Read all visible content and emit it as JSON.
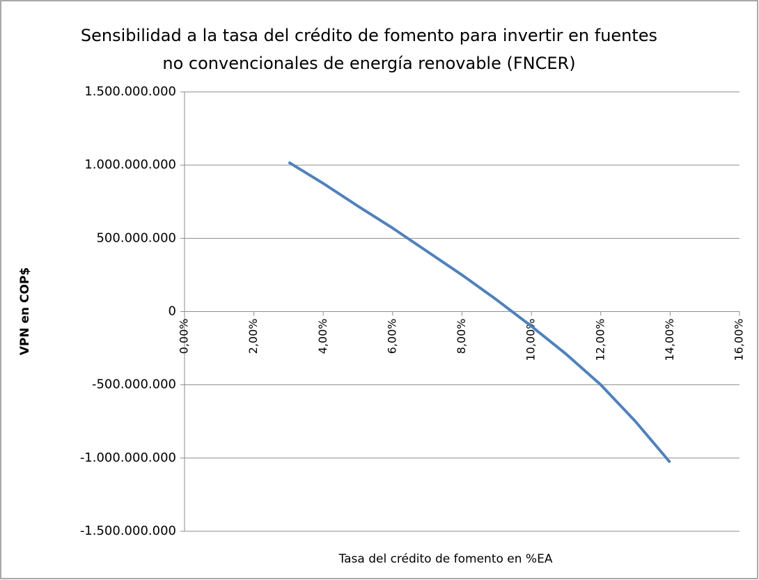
{
  "chart_data": {
    "type": "line",
    "title": [
      "Sensibilidad a la tasa del crédito de fomento  para invertir en fuentes",
      "no convencionales de energía renovable (FNCER)"
    ],
    "xlabel": "Tasa del crédito de fomento  en %EA",
    "ylabel": "VPN en COP$",
    "x": [
      3,
      4,
      5,
      6,
      7,
      8,
      9,
      10,
      11,
      12,
      13,
      14
    ],
    "series": [
      {
        "name": "VPN",
        "color": "#4f81bd",
        "values": [
          1020000000,
          875000000,
          720000000,
          570000000,
          410000000,
          250000000,
          80000000,
          -100000000,
          -290000000,
          -500000000,
          -750000000,
          -1030000000
        ]
      }
    ],
    "xlim": [
      0,
      16
    ],
    "xticks": [
      {
        "value": 0,
        "label": "0,00%"
      },
      {
        "value": 2,
        "label": "2,00%"
      },
      {
        "value": 4,
        "label": "4,00%"
      },
      {
        "value": 6,
        "label": "6,00%"
      },
      {
        "value": 8,
        "label": "8,00%"
      },
      {
        "value": 10,
        "label": "10,00%"
      },
      {
        "value": 12,
        "label": "12,00%"
      },
      {
        "value": 14,
        "label": "14,00%"
      },
      {
        "value": 16,
        "label": "16,00%"
      }
    ],
    "ylim": [
      -1500000000,
      1500000000
    ],
    "yticks": [
      {
        "value": 1500000000,
        "label": "1.500.000.000"
      },
      {
        "value": 1000000000,
        "label": "1.000.000.000"
      },
      {
        "value": 500000000,
        "label": "500.000.000"
      },
      0,
      {
        "value": -500000000,
        "label": "-500.000.000"
      },
      {
        "value": -1000000000,
        "label": "-1.000.000.000"
      },
      {
        "value": -1500000000,
        "label": "-1.500.000.000"
      }
    ],
    "grid": true
  }
}
